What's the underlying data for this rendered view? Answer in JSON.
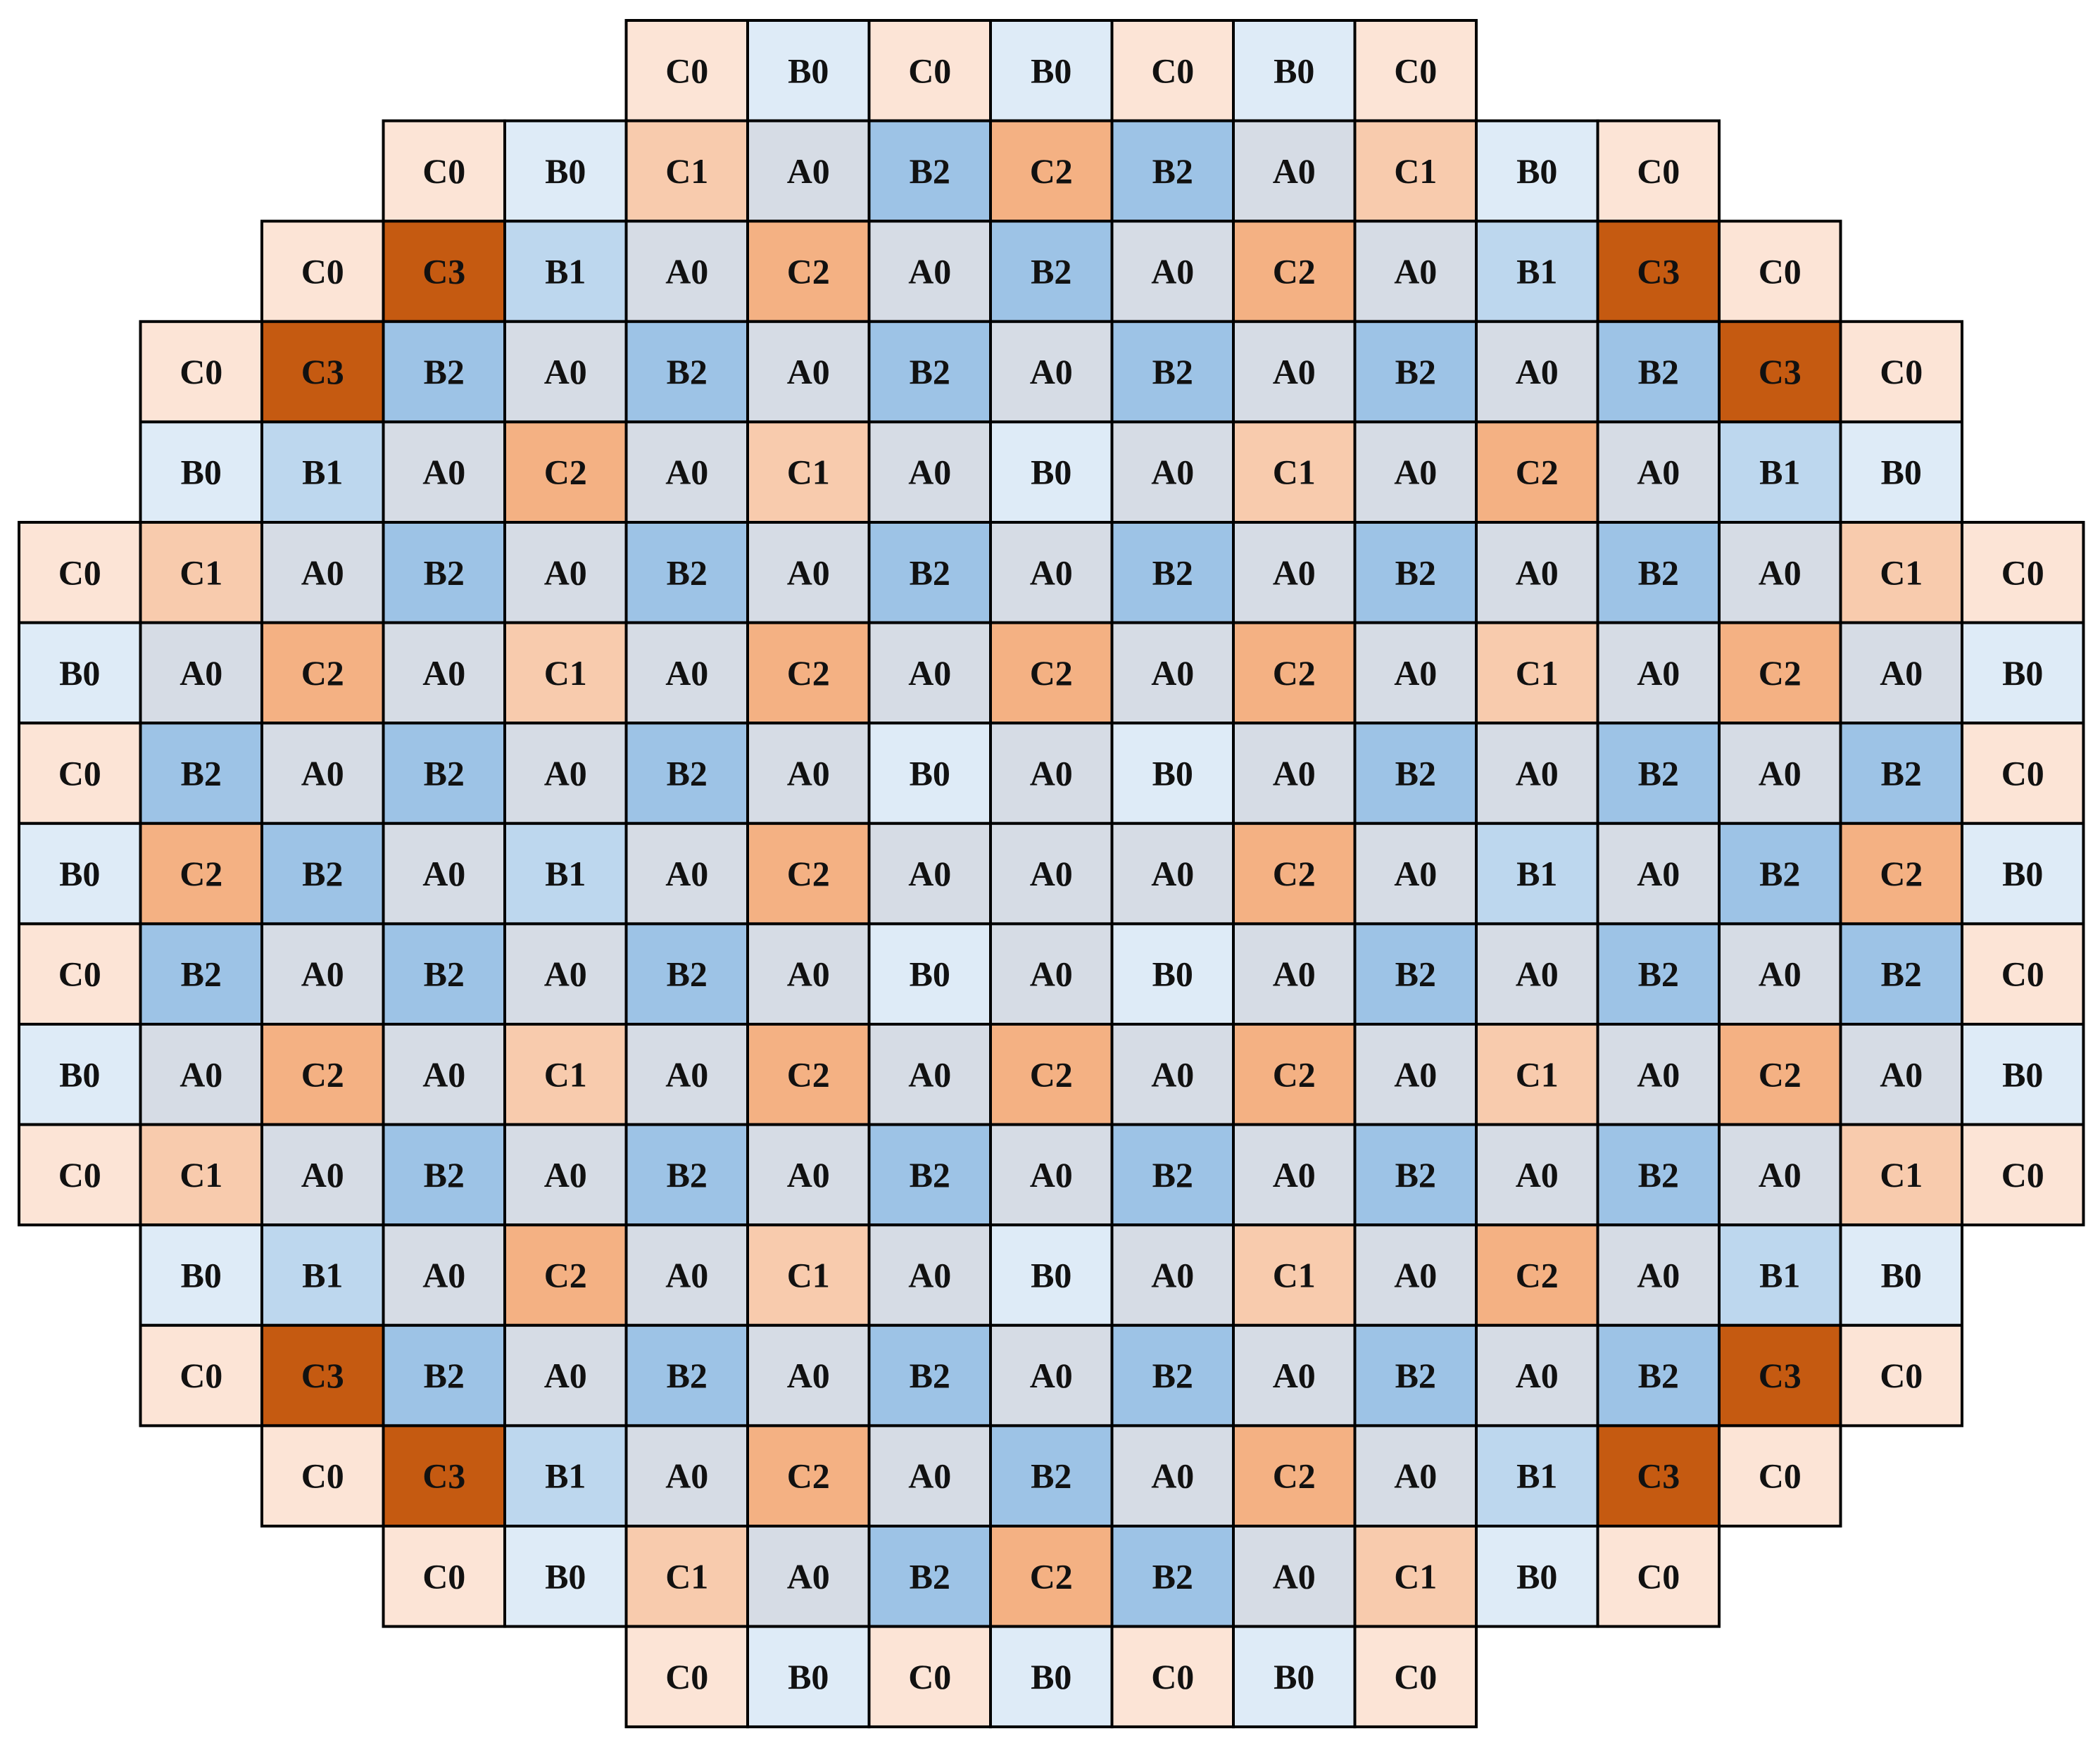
{
  "colors": {
    "A0": "#d6dce5",
    "B0": "#deebf7",
    "B1": "#bdd7ee",
    "B2": "#9dc3e6",
    "C0": "#fce4d6",
    "C1": "#f8cbad",
    "C2": "#f4b183",
    "C3": "#c55a11"
  },
  "rows": [
    [
      "C0",
      "B0",
      "C0",
      "B0",
      "C0",
      "B0",
      "C0"
    ],
    [
      "C0",
      "B0",
      "C1",
      "A0",
      "B2",
      "C2",
      "B2",
      "A0",
      "C1",
      "B0",
      "C0"
    ],
    [
      "C0",
      "C3",
      "B1",
      "A0",
      "C2",
      "A0",
      "B2",
      "A0",
      "C2",
      "A0",
      "B1",
      "C3",
      "C0"
    ],
    [
      "C0",
      "C3",
      "B2",
      "A0",
      "B2",
      "A0",
      "B2",
      "A0",
      "B2",
      "A0",
      "B2",
      "A0",
      "B2",
      "C3",
      "C0"
    ],
    [
      "B0",
      "B1",
      "A0",
      "C2",
      "A0",
      "C1",
      "A0",
      "B0",
      "A0",
      "C1",
      "A0",
      "C2",
      "A0",
      "B1",
      "B0"
    ],
    [
      "C0",
      "C1",
      "A0",
      "B2",
      "A0",
      "B2",
      "A0",
      "B2",
      "A0",
      "B2",
      "A0",
      "B2",
      "A0",
      "B2",
      "A0",
      "C1",
      "C0"
    ],
    [
      "B0",
      "A0",
      "C2",
      "A0",
      "C1",
      "A0",
      "C2",
      "A0",
      "C2",
      "A0",
      "C2",
      "A0",
      "C1",
      "A0",
      "C2",
      "A0",
      "B0"
    ],
    [
      "C0",
      "B2",
      "A0",
      "B2",
      "A0",
      "B2",
      "A0",
      "B0",
      "A0",
      "B0",
      "A0",
      "B2",
      "A0",
      "B2",
      "A0",
      "B2",
      "C0"
    ],
    [
      "B0",
      "C2",
      "B2",
      "A0",
      "B1",
      "A0",
      "C2",
      "A0",
      "A0",
      "A0",
      "C2",
      "A0",
      "B1",
      "A0",
      "B2",
      "C2",
      "B0"
    ],
    [
      "C0",
      "B2",
      "A0",
      "B2",
      "A0",
      "B2",
      "A0",
      "B0",
      "A0",
      "B0",
      "A0",
      "B2",
      "A0",
      "B2",
      "A0",
      "B2",
      "C0"
    ],
    [
      "B0",
      "A0",
      "C2",
      "A0",
      "C1",
      "A0",
      "C2",
      "A0",
      "C2",
      "A0",
      "C2",
      "A0",
      "C1",
      "A0",
      "C2",
      "A0",
      "B0"
    ],
    [
      "C0",
      "C1",
      "A0",
      "B2",
      "A0",
      "B2",
      "A0",
      "B2",
      "A0",
      "B2",
      "A0",
      "B2",
      "A0",
      "B2",
      "A0",
      "C1",
      "C0"
    ],
    [
      "B0",
      "B1",
      "A0",
      "C2",
      "A0",
      "C1",
      "A0",
      "B0",
      "A0",
      "C1",
      "A0",
      "C2",
      "A0",
      "B1",
      "B0"
    ],
    [
      "C0",
      "C3",
      "B2",
      "A0",
      "B2",
      "A0",
      "B2",
      "A0",
      "B2",
      "A0",
      "B2",
      "A0",
      "B2",
      "C3",
      "C0"
    ],
    [
      "C0",
      "C3",
      "B1",
      "A0",
      "C2",
      "A0",
      "B2",
      "A0",
      "C2",
      "A0",
      "B1",
      "C3",
      "C0"
    ],
    [
      "C0",
      "B0",
      "C1",
      "A0",
      "B2",
      "C2",
      "B2",
      "A0",
      "C1",
      "B0",
      "C0"
    ],
    [
      "C0",
      "B0",
      "C0",
      "B0",
      "C0",
      "B0",
      "C0"
    ]
  ]
}
